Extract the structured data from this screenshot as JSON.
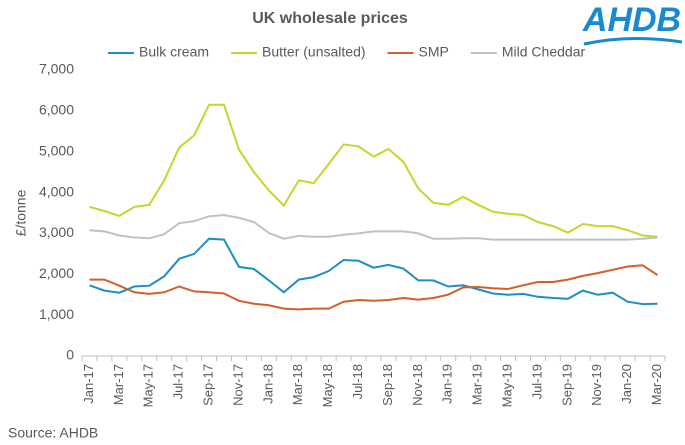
{
  "chart_data": {
    "type": "line",
    "title": "UK wholesale prices",
    "logo": "AHDB",
    "source": "Source: AHDB",
    "y_label": "£/tonne",
    "categories": [
      "Jan-17",
      null,
      "Mar-17",
      null,
      "May-17",
      null,
      "Jul-17",
      null,
      "Sep-17",
      null,
      "Nov-17",
      null,
      "Jan-18",
      null,
      "Mar-18",
      null,
      "May-18",
      null,
      "Jul-18",
      null,
      "Sep-18",
      null,
      "Nov-18",
      null,
      "Jan-19",
      null,
      "Mar-19",
      null,
      "May-19",
      null,
      "Jul-19",
      null,
      "Sep-19",
      null,
      "Nov-19",
      null,
      "Jan-20",
      null,
      "Mar-20"
    ],
    "series": [
      {
        "name": "Bulk cream",
        "color": "#1f8ec6",
        "values": [
          1730,
          1600,
          1550,
          1700,
          1720,
          1950,
          2380,
          2500,
          2870,
          2850,
          2180,
          2130,
          1850,
          1560,
          1870,
          1930,
          2080,
          2350,
          2330,
          2160,
          2230,
          2140,
          1850,
          1850,
          1700,
          1730,
          1630,
          1530,
          1500,
          1520,
          1450,
          1420,
          1400,
          1600,
          1500,
          1550,
          1330,
          1270,
          1280
        ]
      },
      {
        "name": "Butter (unsalted)",
        "color": "#c8d52a",
        "values": [
          3650,
          3550,
          3430,
          3650,
          3700,
          4300,
          5100,
          5400,
          6150,
          6150,
          5050,
          4500,
          4050,
          3680,
          4300,
          4230,
          4700,
          5180,
          5130,
          4880,
          5070,
          4750,
          4100,
          3750,
          3700,
          3900,
          3700,
          3530,
          3480,
          3450,
          3280,
          3180,
          3020,
          3230,
          3180,
          3180,
          3080,
          2950,
          2920
        ]
      },
      {
        "name": "SMP",
        "color": "#d2602a",
        "values": [
          1870,
          1870,
          1720,
          1560,
          1520,
          1560,
          1700,
          1580,
          1560,
          1530,
          1350,
          1280,
          1240,
          1160,
          1140,
          1160,
          1160,
          1330,
          1370,
          1350,
          1370,
          1420,
          1380,
          1420,
          1500,
          1680,
          1690,
          1660,
          1640,
          1730,
          1810,
          1810,
          1870,
          1960,
          2030,
          2110,
          2190,
          2220,
          1980
        ]
      },
      {
        "name": "Mild Cheddar",
        "color": "#b9c4ca",
        "values": [
          3080,
          3050,
          2950,
          2900,
          2880,
          2980,
          3250,
          3300,
          3420,
          3450,
          3380,
          3280,
          3010,
          2870,
          2940,
          2920,
          2920,
          2970,
          3000,
          3050,
          3050,
          3050,
          3000,
          2870,
          2870,
          2880,
          2880,
          2850,
          2850,
          2850,
          2850,
          2850,
          2850,
          2850,
          2850,
          2850,
          2850,
          2870,
          2900
        ]
      }
    ],
    "ylim": [
      0,
      7000
    ],
    "yticks": [
      0,
      {
        "value": 1000,
        "label": "1,000"
      },
      {
        "value": 2000,
        "label": "2,000"
      },
      {
        "value": 3000,
        "label": "3,000"
      },
      {
        "value": 4000,
        "label": "4,000"
      },
      {
        "value": 5000,
        "label": "5,000"
      },
      {
        "value": 6000,
        "label": "6,000"
      },
      {
        "value": 7000,
        "label": "7,000"
      }
    ],
    "grid": false
  }
}
